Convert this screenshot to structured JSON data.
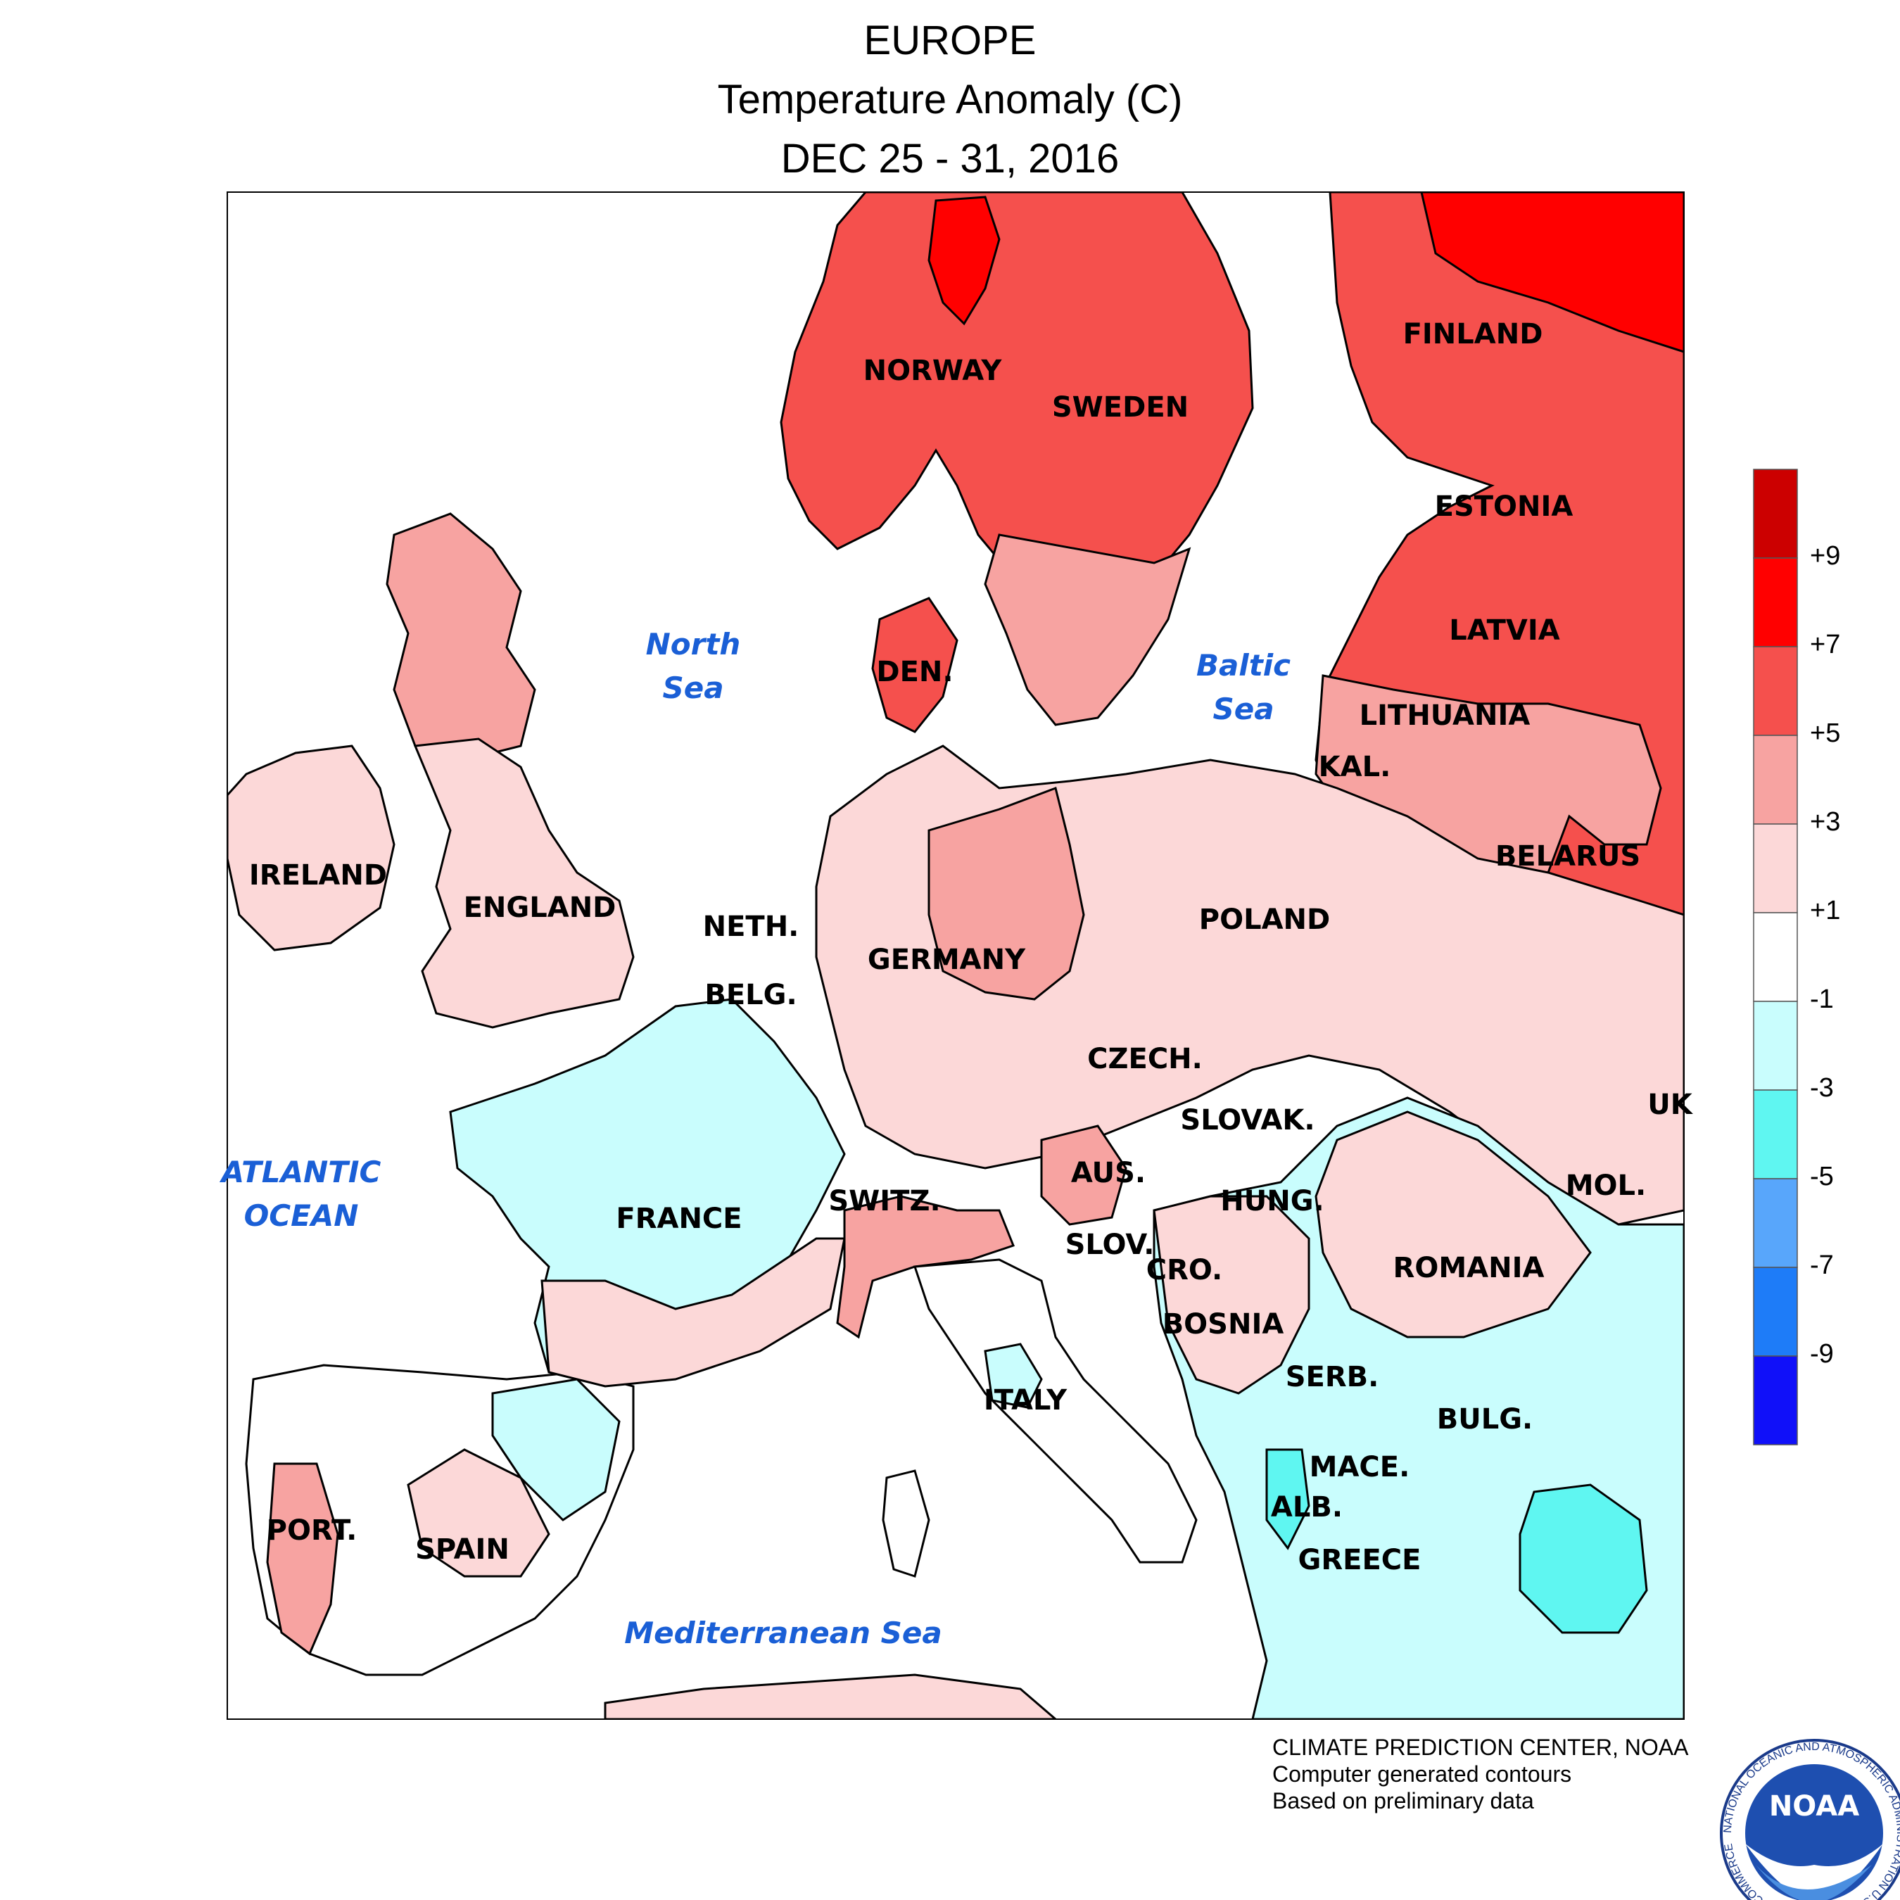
{
  "title": {
    "line1": "EUROPE",
    "line2": "Temperature Anomaly (C)",
    "line3": "DEC 25 - 31, 2016"
  },
  "countries": {
    "norway": "NORWAY",
    "sweden": "SWEDEN",
    "finland": "FINLAND",
    "estonia": "ESTONIA",
    "latvia": "LATVIA",
    "lithuania": "LITHUANIA",
    "kal": "KAL.",
    "belarus": "BELARUS",
    "poland": "POLAND",
    "den": "DEN.",
    "ireland": "IRELAND",
    "england": "ENGLAND",
    "neth": "NETH.",
    "belg": "BELG.",
    "germany": "GERMANY",
    "czech": "CZECH.",
    "slovak": "SLOVAK.",
    "uk": "UK",
    "mol": "MOL.",
    "aus": "AUS.",
    "hung": "HUNG.",
    "switz": "SWITZ.",
    "france": "FRANCE",
    "slov": "SLOV.",
    "cro": "CRO.",
    "romania": "ROMANIA",
    "bosnia": "BOSNIA",
    "serb": "SERB.",
    "bulg": "BULG.",
    "italy": "ITALY",
    "mace": "MACE.",
    "alb": "ALB.",
    "port": "PORT.",
    "spain": "SPAIN",
    "greece": "GREECE"
  },
  "seas": {
    "north_1": "North",
    "north_2": "Sea",
    "baltic_1": "Baltic",
    "baltic_2": "Sea",
    "atlantic_1": "ATLANTIC",
    "atlantic_2": "OCEAN",
    "mediterranean": "Mediterranean Sea"
  },
  "legend": {
    "colors": [
      "#cc0000",
      "#ff0000",
      "#f5504d",
      "#f7a3a1",
      "#fcd8d8",
      "#ffffff",
      "#c9fdfd",
      "#5ff6f1",
      "#58a6fb",
      "#1e7cf8",
      "#1010f9"
    ],
    "labels": [
      "+9",
      "+7",
      "+5",
      "+3",
      "+1",
      "-1",
      "-3",
      "-5",
      "-7",
      "-9"
    ]
  },
  "credits": {
    "line1": "CLIMATE PREDICTION CENTER, NOAA",
    "line2": "Computer generated contours",
    "line3": "Based on preliminary data"
  },
  "logo": {
    "text": "NOAA",
    "ring_text": "NATIONAL OCEANIC AND ATMOSPHERIC ADMINISTRATION U.S. DEPARTMENT OF COMMERCE"
  }
}
